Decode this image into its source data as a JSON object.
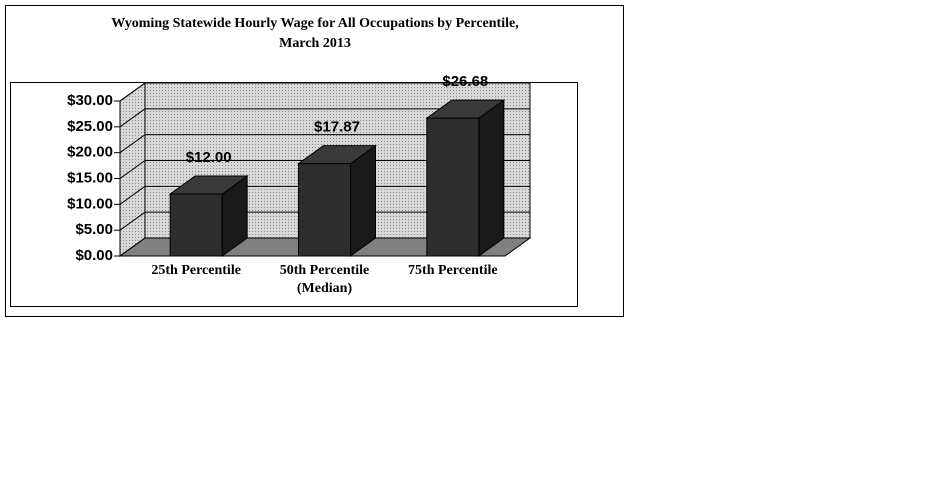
{
  "chart_data": {
    "type": "bar3d",
    "title": "Wyoming Statewide Hourly Wage for All Occupations by Percentile, March 2013",
    "categories": [
      "25th Percentile",
      "50th Percentile (Median)",
      "75th Percentile"
    ],
    "values": [
      12,
      17.87,
      26.68
    ],
    "value_labels": [
      "$12.00",
      "$17.87",
      "$26.68"
    ],
    "color": "#2e2e2e",
    "ylim": [
      0,
      30
    ],
    "yticks": [
      {
        "value": 0,
        "label": "$0.00"
      },
      {
        "value": 5,
        "label": "$5.00"
      },
      {
        "value": 10,
        "label": "$10.00"
      },
      {
        "value": 15,
        "label": "$15.00"
      },
      {
        "value": 20,
        "label": "$20.00"
      },
      {
        "value": 25,
        "label": "$25.00"
      },
      {
        "value": 30,
        "label": "$30.00"
      }
    ],
    "grid": true
  }
}
